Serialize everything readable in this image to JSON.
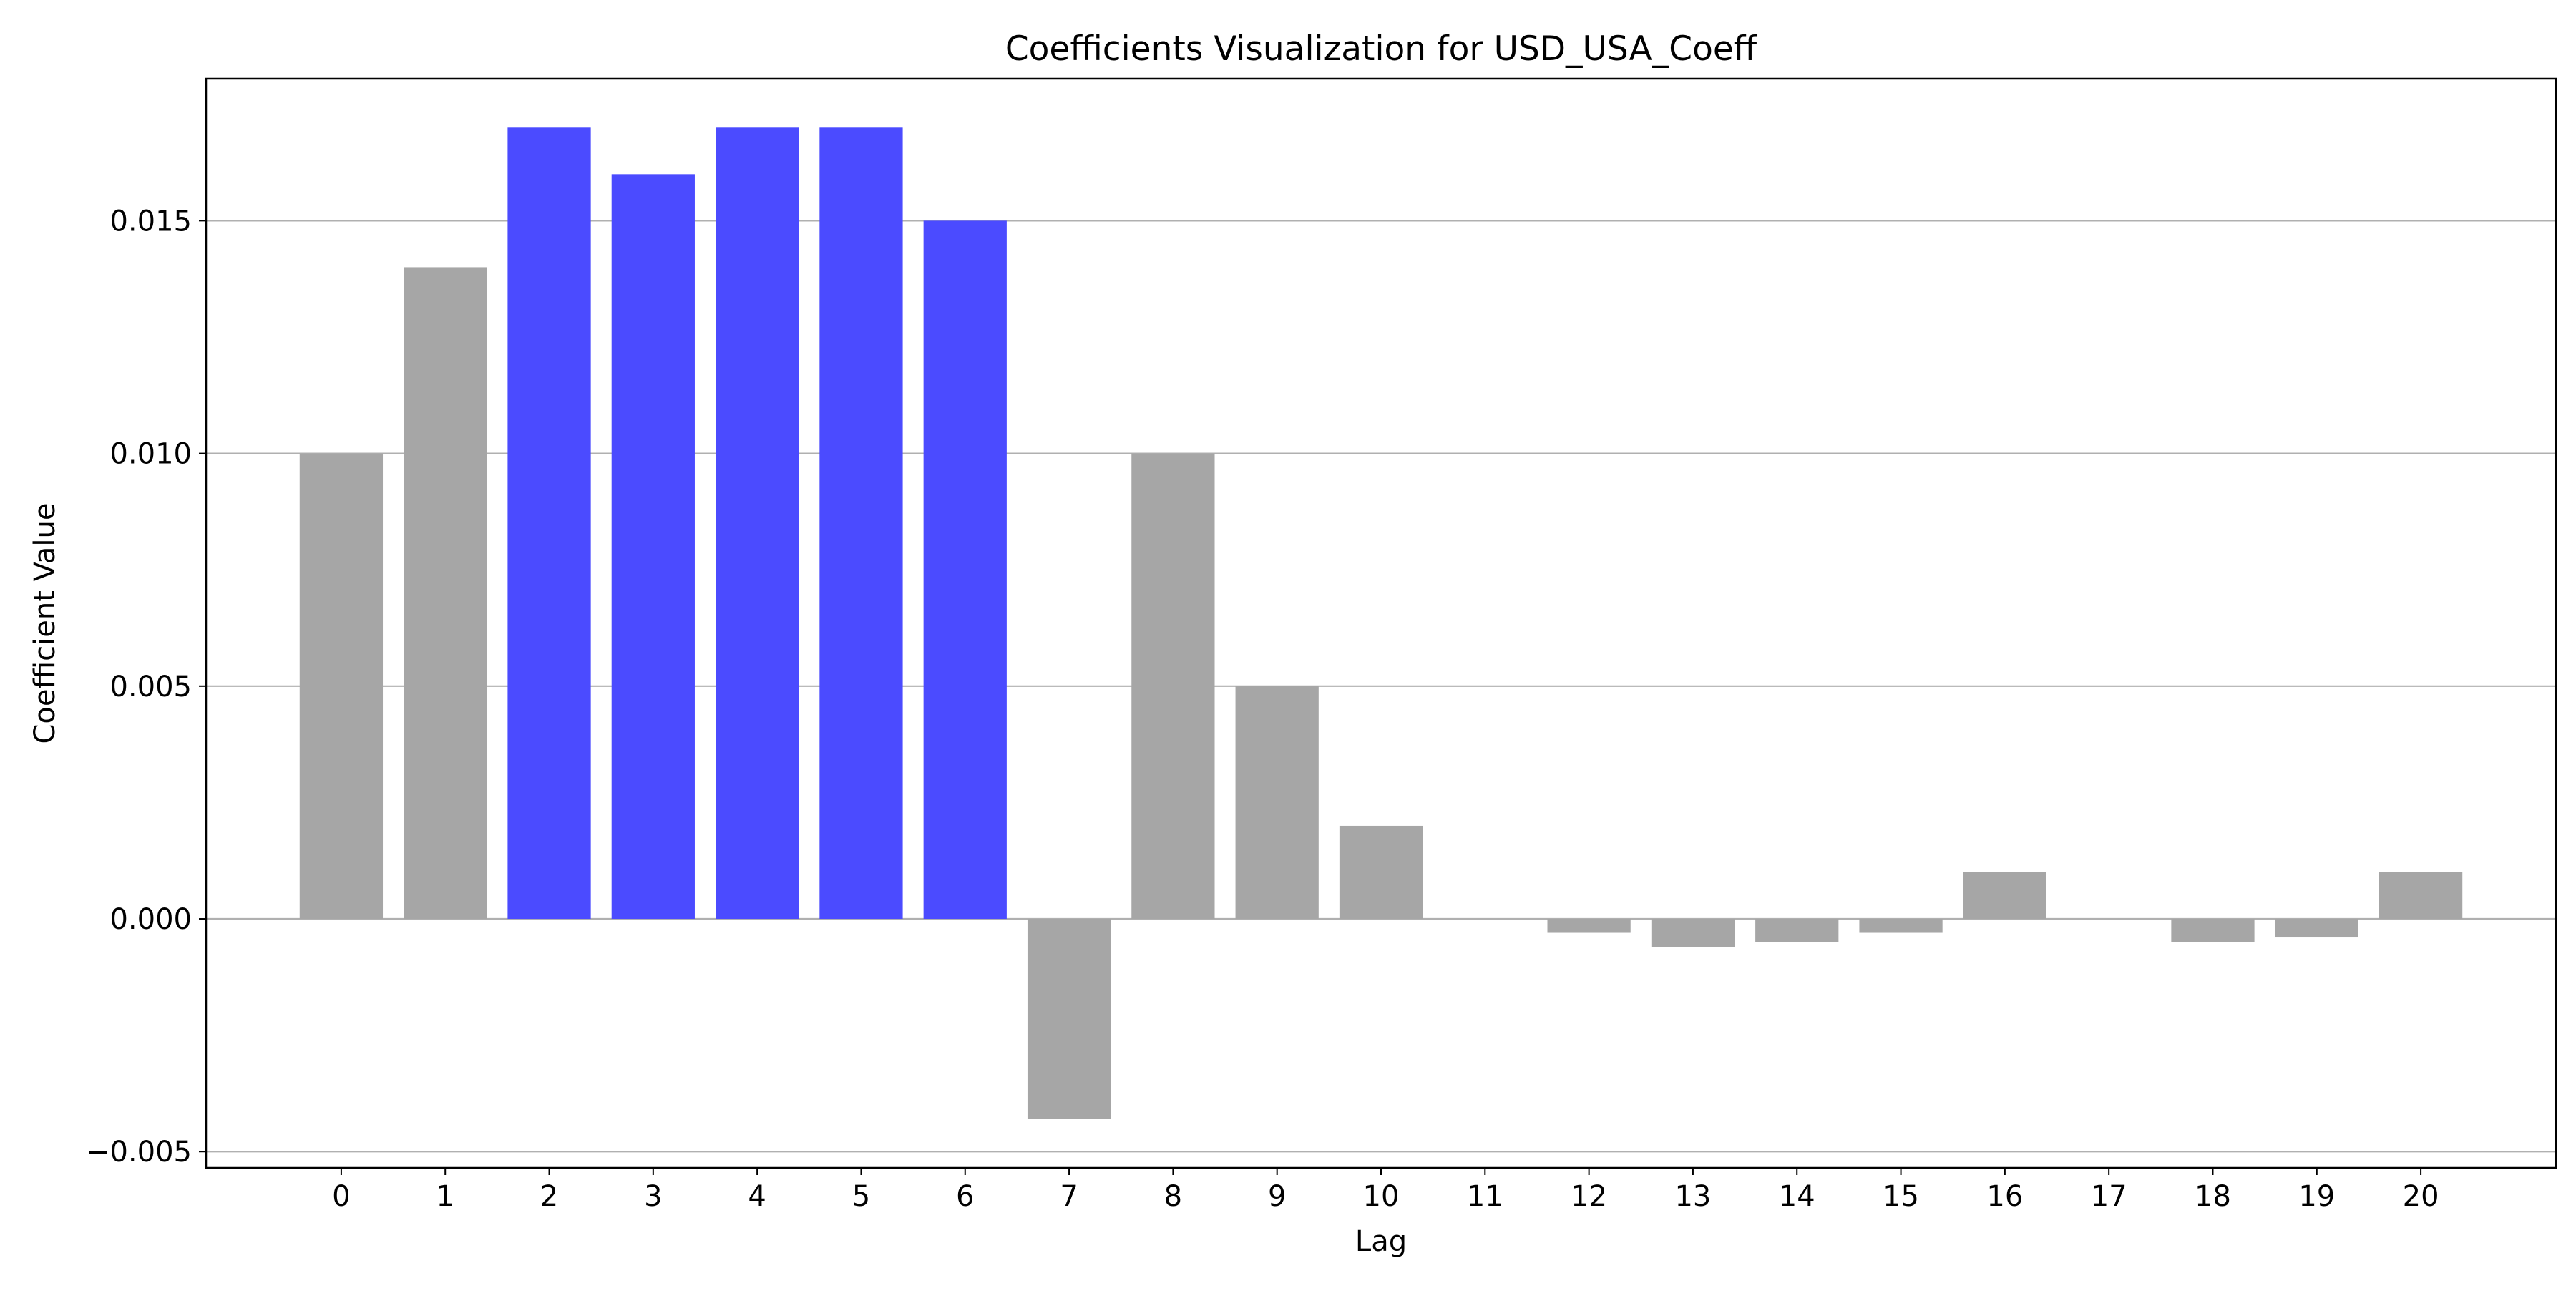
{
  "chart_data": {
    "type": "bar",
    "title": "Coefficients Visualization for USD_USA_Coeff",
    "xlabel": "Lag",
    "ylabel": "Coefficient Value",
    "categories": [
      "0",
      "1",
      "2",
      "3",
      "4",
      "5",
      "6",
      "7",
      "8",
      "9",
      "10",
      "11",
      "12",
      "13",
      "14",
      "15",
      "16",
      "17",
      "18",
      "19",
      "20"
    ],
    "values": [
      0.01,
      0.014,
      0.017,
      0.016,
      0.017,
      0.017,
      0.015,
      -0.0043,
      0.01,
      0.005,
      0.002,
      0.0,
      -0.0003,
      -0.0006,
      -0.0005,
      -0.0003,
      0.001,
      0.0,
      -0.0005,
      -0.0004,
      0.001
    ],
    "highlighted": [
      false,
      false,
      true,
      true,
      true,
      true,
      true,
      false,
      false,
      false,
      false,
      false,
      false,
      false,
      false,
      false,
      false,
      false,
      false,
      false,
      false
    ],
    "ylim": [
      -0.00535,
      0.01805
    ],
    "yticks": [
      -0.005,
      0.0,
      0.005,
      0.01,
      0.015
    ],
    "ytick_labels": [
      "−0.005",
      "0.000",
      "0.005",
      "0.010",
      "0.015"
    ],
    "grid": "y",
    "colors": {
      "default_bar": "#a6a6a6",
      "highlight_bar": "#4b4bff",
      "grid": "#b0b0b0",
      "axes": "#000000"
    }
  }
}
